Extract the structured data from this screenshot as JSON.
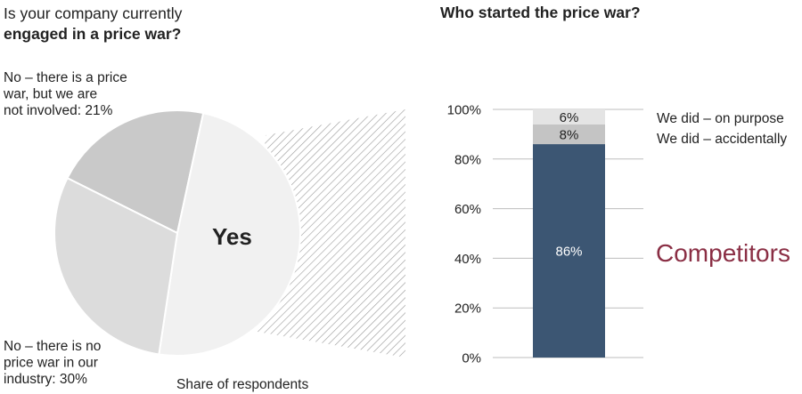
{
  "titles": {
    "left_line1": "Is your company currently",
    "left_line2": "engaged in a price war?",
    "right": "Who started the price war?"
  },
  "pie": {
    "yes_label": "Yes",
    "caption": "Share of respondents",
    "slices": [
      {
        "label_lines": [
          "No – there is a price",
          "war, but we are",
          "not involved: 21%"
        ],
        "value": 21,
        "color": "#c9c9c9"
      },
      {
        "label_lines": [
          "Yes"
        ],
        "value": 49,
        "color": "#f1f1f1"
      },
      {
        "label_lines": [
          "No – there is no",
          "price war in our",
          "industry: 30%"
        ],
        "value": 30,
        "color": "#dcdcdc"
      }
    ]
  },
  "chart_data": [
    {
      "type": "pie",
      "title": "Is your company currently engaged in a price war?",
      "categories": [
        "No – there is a price war, but we are not involved",
        "Yes",
        "No – there is no price war in our industry"
      ],
      "values": [
        21,
        49,
        30
      ],
      "unit": "%",
      "annotation": "Share of respondents"
    },
    {
      "type": "bar",
      "stacked": true,
      "title": "Who started the price war?",
      "categories": [
        ""
      ],
      "series": [
        {
          "name": "Competitors",
          "values": [
            86
          ],
          "label": "86%",
          "color": "#3c5673"
        },
        {
          "name": "We did – accidentally",
          "values": [
            8
          ],
          "label": "8%",
          "color": "#c4c4c4"
        },
        {
          "name": "We did – on purpose",
          "values": [
            6
          ],
          "label": "6%",
          "color": "#e4e4e4"
        }
      ],
      "ylim": [
        0,
        100
      ],
      "yticks": [
        0,
        20,
        40,
        60,
        80,
        100
      ],
      "ytick_labels": [
        "0%",
        "20%",
        "40%",
        "60%",
        "80%",
        "100%"
      ],
      "grid": true,
      "accent_color": "#8a2e44"
    }
  ]
}
